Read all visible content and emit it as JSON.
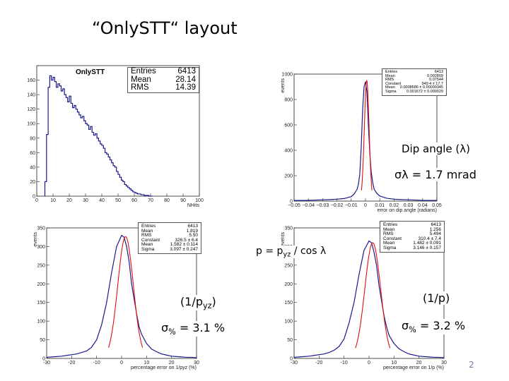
{
  "slide": {
    "title": "“OnlySTT“ layout",
    "page_number": "2"
  },
  "annotations": {
    "dip_angle": "Dip angle (λ)",
    "sigma_lambda": "σλ = 1.7 mrad",
    "p_formula_a": "p = p",
    "p_formula_sub": "yz",
    "p_formula_b": " / cos λ",
    "inv_pyz_a": "(1/p",
    "inv_pyz_sub": "yz",
    "inv_pyz_b": ")",
    "sigma_pyz_a": "σ",
    "sigma_pyz_sub": "%",
    "sigma_pyz_b": " = 3.1 %",
    "inv_p": "(1/p)",
    "sigma_p_a": "σ",
    "sigma_p_sub": "%",
    "sigma_p_b": " = 3.2 %"
  },
  "stats": {
    "nhits": [
      {
        "k": "Entries",
        "v": "6413"
      },
      {
        "k": "Mean",
        "v": "28.14"
      },
      {
        "k": "RMS",
        "v": "14.39"
      }
    ],
    "dip": [
      {
        "k": "Entries",
        "v": "6413"
      },
      {
        "k": "Mean",
        "v": "0.002809"
      },
      {
        "k": "RMS",
        "v": "0.07544"
      },
      {
        "k": "Constant",
        "v": "949.4 ± 17.7"
      },
      {
        "k": "Mean",
        "v": "0.0008586 ± 0.00000345"
      },
      {
        "k": "Sigma",
        "v": "0.001672 ± 0.000029"
      }
    ],
    "pyz": [
      {
        "k": "Entries",
        "v": "6413"
      },
      {
        "k": "Mean",
        "v": "1.819"
      },
      {
        "k": "RMS",
        "v": "5.50"
      },
      {
        "k": "Constant",
        "v": "326.5 ± 6.4"
      },
      {
        "k": "Mean",
        "v": "1.582 ± 0.114"
      },
      {
        "k": "Sigma",
        "v": "3.097 ± 0.247"
      }
    ],
    "p": [
      {
        "k": "Entries",
        "v": "6413"
      },
      {
        "k": "Mean",
        "v": "1.256"
      },
      {
        "k": "RMS",
        "v": "5.494"
      },
      {
        "k": "Constant",
        "v": "310.4 ± 7.4"
      },
      {
        "k": "Mean",
        "v": "1.482 ± 0.091"
      },
      {
        "k": "Sigma",
        "v": "3.146 ± 0.157"
      }
    ]
  },
  "chart_data": [
    {
      "type": "bar",
      "title": "OnlySTT",
      "xlabel": "NHits",
      "ylabel": "",
      "xlim": [
        0,
        100
      ],
      "ylim": [
        0,
        180
      ],
      "xticks": [
        0,
        10,
        20,
        30,
        40,
        50,
        60,
        70,
        80,
        90,
        100
      ],
      "yticks": [
        0,
        20,
        40,
        60,
        80,
        100,
        120,
        140,
        160
      ],
      "bin_width": 1,
      "x": [
        5,
        6,
        7,
        8,
        9,
        10,
        11,
        12,
        13,
        14,
        15,
        16,
        17,
        18,
        19,
        20,
        21,
        22,
        23,
        24,
        25,
        26,
        27,
        28,
        29,
        30,
        31,
        32,
        33,
        34,
        35,
        36,
        37,
        38,
        39,
        40,
        41,
        42,
        43,
        44,
        45,
        46,
        47,
        48,
        49,
        50,
        51,
        52,
        53,
        54,
        55,
        56,
        57,
        58,
        59,
        60,
        61,
        62,
        63,
        64,
        65,
        66,
        67,
        68,
        69,
        70
      ],
      "values": [
        20,
        85,
        150,
        166,
        160,
        164,
        158,
        150,
        155,
        152,
        145,
        148,
        140,
        136,
        130,
        138,
        128,
        122,
        125,
        120,
        116,
        112,
        108,
        110,
        104,
        100,
        98,
        92,
        96,
        88,
        84,
        86,
        80,
        76,
        72,
        70,
        66,
        60,
        58,
        54,
        50,
        46,
        42,
        40,
        34,
        30,
        26,
        22,
        20,
        16,
        14,
        12,
        10,
        8,
        6,
        5,
        4,
        3,
        3,
        2,
        2,
        1,
        1,
        1,
        0,
        0
      ],
      "color": "#1a1a8c"
    },
    {
      "type": "line",
      "title": "",
      "xlabel": "error on dip angle (radians)",
      "ylabel": "events",
      "xlim": [
        -0.05,
        0.05
      ],
      "ylim": [
        0,
        1000
      ],
      "xticks": [
        -0.05,
        -0.04,
        -0.03,
        -0.02,
        -0.01,
        0,
        0.01,
        0.02,
        0.03,
        0.04,
        0.05
      ],
      "yticks": [
        0,
        200,
        400,
        600,
        800,
        1000
      ],
      "x": [
        -0.05,
        -0.045,
        -0.04,
        -0.035,
        -0.03,
        -0.025,
        -0.02,
        -0.015,
        -0.01,
        -0.008,
        -0.006,
        -0.005,
        -0.004,
        -0.003,
        -0.002,
        -0.001,
        0,
        0.001,
        0.002,
        0.003,
        0.004,
        0.005,
        0.006,
        0.008,
        0.01,
        0.015,
        0.02,
        0.025,
        0.03,
        0.035,
        0.04,
        0.045,
        0.05
      ],
      "values": [
        5,
        5,
        6,
        8,
        10,
        12,
        15,
        20,
        35,
        55,
        90,
        130,
        210,
        420,
        720,
        900,
        940,
        860,
        600,
        380,
        230,
        150,
        95,
        60,
        40,
        22,
        15,
        12,
        10,
        8,
        6,
        5,
        5
      ],
      "fit": {
        "constant": 949.4,
        "mean": 0.0008586,
        "sigma": 0.001672
      },
      "color": "#1a1a8c",
      "fit_color": "#e01010"
    },
    {
      "type": "line",
      "title": "",
      "xlabel": "percentage error on 1/pyz (%)",
      "ylabel": "events",
      "xlim": [
        -30,
        30
      ],
      "ylim": [
        0,
        350
      ],
      "xticks": [
        -30,
        -20,
        -10,
        0,
        10,
        20,
        30
      ],
      "yticks": [
        0,
        50,
        100,
        150,
        200,
        250,
        300,
        350
      ],
      "x": [
        -30,
        -28,
        -26,
        -24,
        -22,
        -20,
        -18,
        -16,
        -14,
        -12,
        -10,
        -8,
        -6,
        -4,
        -2,
        0,
        1,
        2,
        3,
        4,
        5,
        6,
        7,
        8,
        10,
        12,
        14,
        16,
        18,
        20,
        22,
        24,
        26,
        28,
        30
      ],
      "values": [
        3,
        4,
        5,
        6,
        8,
        10,
        12,
        16,
        20,
        30,
        50,
        90,
        150,
        230,
        300,
        330,
        325,
        300,
        260,
        200,
        160,
        120,
        85,
        65,
        40,
        25,
        18,
        12,
        9,
        6,
        5,
        4,
        3,
        3,
        2
      ],
      "fit": {
        "constant": 326.5,
        "mean": 1.582,
        "sigma": 3.097
      },
      "color": "#1a1a8c",
      "fit_color": "#e01010"
    },
    {
      "type": "line",
      "title": "",
      "xlabel": "percentage error on 1/p (%)",
      "ylabel": "events",
      "xlim": [
        -30,
        30
      ],
      "ylim": [
        0,
        350
      ],
      "xticks": [
        -30,
        -20,
        -10,
        0,
        10,
        20,
        30
      ],
      "yticks": [
        0,
        50,
        100,
        150,
        200,
        250,
        300,
        350
      ],
      "x": [
        -30,
        -28,
        -26,
        -24,
        -22,
        -20,
        -18,
        -16,
        -14,
        -12,
        -10,
        -8,
        -6,
        -4,
        -2,
        0,
        1,
        2,
        3,
        4,
        5,
        6,
        7,
        8,
        10,
        12,
        14,
        16,
        18,
        20,
        22,
        24,
        26,
        28,
        30
      ],
      "values": [
        3,
        4,
        5,
        6,
        8,
        10,
        12,
        16,
        22,
        32,
        52,
        95,
        150,
        225,
        290,
        315,
        310,
        285,
        250,
        195,
        155,
        115,
        85,
        62,
        40,
        26,
        18,
        12,
        9,
        6,
        5,
        4,
        3,
        3,
        2
      ],
      "fit": {
        "constant": 310.4,
        "mean": 1.482,
        "sigma": 3.146
      },
      "color": "#1a1a8c",
      "fit_color": "#e01010"
    }
  ]
}
